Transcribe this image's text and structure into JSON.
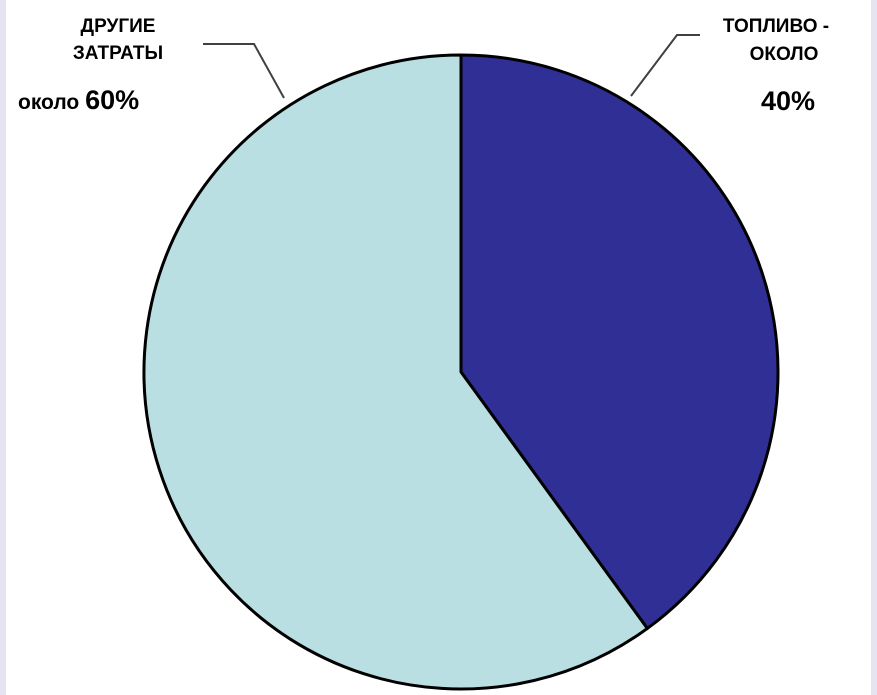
{
  "chart_data": {
    "type": "pie",
    "start": "12 o'clock, clockwise",
    "slices": [
      {
        "key": "fuel",
        "value": 40,
        "color": "#2f2f96",
        "label_lines": [
          "ТОПЛИВО -",
          "ОКОЛО"
        ],
        "value_label": "40%"
      },
      {
        "key": "other",
        "value": 60,
        "color": "#b9dfe3",
        "label_lines": [
          "ДРУГИЕ",
          "ЗАТРАТЫ"
        ],
        "label_prefix": "около ",
        "value_label": "60%"
      }
    ],
    "outline_color": "#000000"
  }
}
